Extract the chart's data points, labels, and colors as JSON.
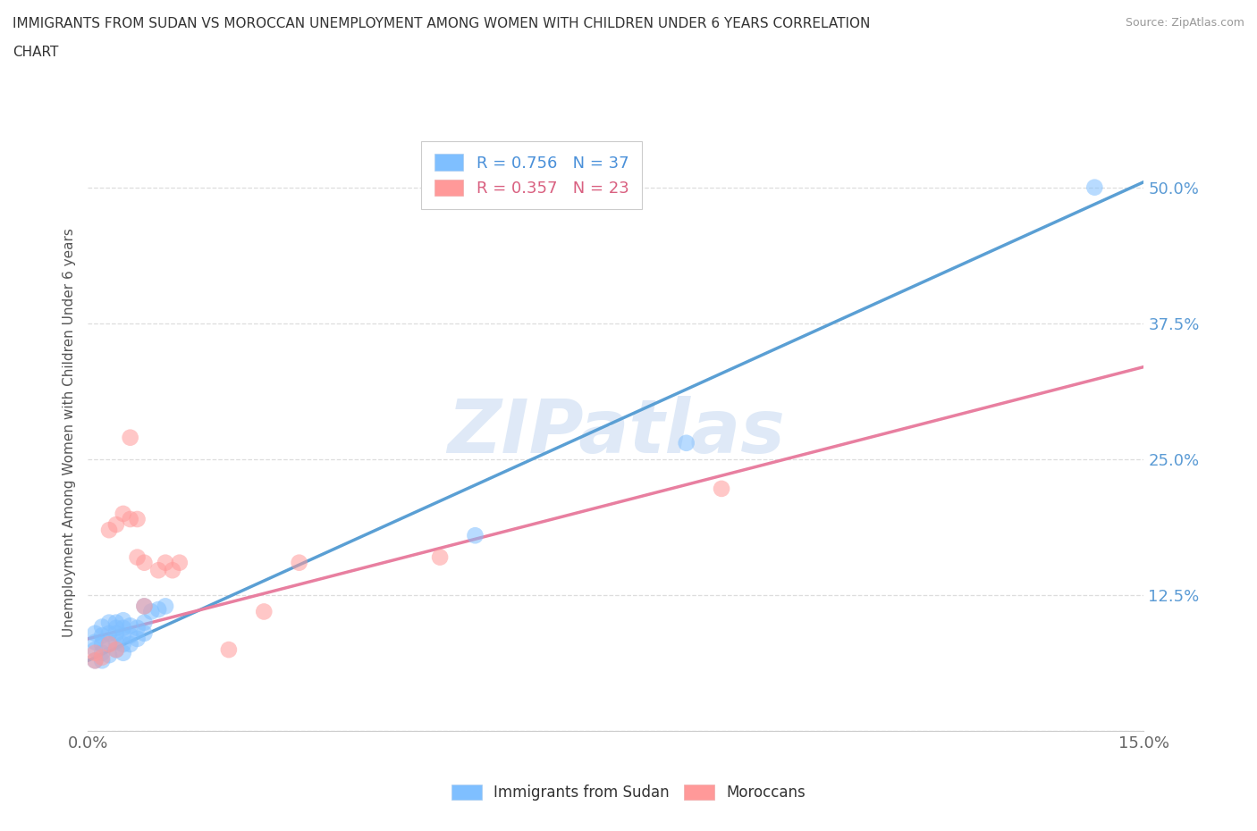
{
  "title_line1": "IMMIGRANTS FROM SUDAN VS MOROCCAN UNEMPLOYMENT AMONG WOMEN WITH CHILDREN UNDER 6 YEARS CORRELATION",
  "title_line2": "CHART",
  "source": "Source: ZipAtlas.com",
  "ylabel": "Unemployment Among Women with Children Under 6 years",
  "xlim": [
    0.0,
    0.15
  ],
  "ylim": [
    0.0,
    0.55
  ],
  "xticks": [
    0.0,
    0.025,
    0.05,
    0.075,
    0.1,
    0.125,
    0.15
  ],
  "xticklabels_show": {
    "0": "0.0%",
    "6": "15.0%"
  },
  "yticks": [
    0.0,
    0.125,
    0.25,
    0.375,
    0.5
  ],
  "yticklabels": [
    "",
    "12.5%",
    "25.0%",
    "37.5%",
    "50.0%"
  ],
  "blue_color": "#7fbfff",
  "pink_color": "#ff9999",
  "blue_line_color": "#5a9fd4",
  "pink_line_color": "#e87fa0",
  "blue_label": "Immigrants from Sudan",
  "pink_label": "Moroccans",
  "legend_r_blue": "R = 0.756",
  "legend_n_blue": "N = 37",
  "legend_r_pink": "R = 0.357",
  "legend_n_pink": "N = 23",
  "legend_text_blue": "R = 0.756   N = 37",
  "legend_text_pink": "R = 0.357   N = 23",
  "watermark": "ZIPatlas",
  "blue_scatter_x": [
    0.001,
    0.001,
    0.001,
    0.001,
    0.002,
    0.002,
    0.002,
    0.002,
    0.002,
    0.003,
    0.003,
    0.003,
    0.003,
    0.004,
    0.004,
    0.004,
    0.004,
    0.004,
    0.005,
    0.005,
    0.005,
    0.005,
    0.005,
    0.006,
    0.006,
    0.006,
    0.007,
    0.007,
    0.008,
    0.008,
    0.008,
    0.009,
    0.01,
    0.011,
    0.055,
    0.085,
    0.143
  ],
  "blue_scatter_y": [
    0.065,
    0.075,
    0.082,
    0.09,
    0.065,
    0.072,
    0.08,
    0.088,
    0.096,
    0.07,
    0.082,
    0.09,
    0.1,
    0.075,
    0.082,
    0.09,
    0.095,
    0.1,
    0.072,
    0.08,
    0.088,
    0.095,
    0.102,
    0.08,
    0.088,
    0.097,
    0.085,
    0.095,
    0.09,
    0.1,
    0.115,
    0.11,
    0.112,
    0.115,
    0.18,
    0.265,
    0.5
  ],
  "pink_scatter_x": [
    0.001,
    0.001,
    0.002,
    0.003,
    0.003,
    0.004,
    0.004,
    0.005,
    0.006,
    0.006,
    0.007,
    0.007,
    0.008,
    0.008,
    0.01,
    0.011,
    0.012,
    0.013,
    0.02,
    0.025,
    0.03,
    0.05,
    0.09
  ],
  "pink_scatter_y": [
    0.065,
    0.072,
    0.068,
    0.08,
    0.185,
    0.075,
    0.19,
    0.2,
    0.195,
    0.27,
    0.16,
    0.195,
    0.115,
    0.155,
    0.148,
    0.155,
    0.148,
    0.155,
    0.075,
    0.11,
    0.155,
    0.16,
    0.223
  ],
  "blue_line_x": [
    0.0,
    0.15
  ],
  "blue_line_y": [
    0.065,
    0.505
  ],
  "pink_line_x": [
    0.0,
    0.15
  ],
  "pink_line_y": [
    0.085,
    0.335
  ],
  "grid_color": "#dddddd",
  "spine_color": "#cccccc",
  "tick_label_color_y": "#5b9bd5",
  "tick_label_color_x": "#666666",
  "title_color": "#333333",
  "ylabel_color": "#555555",
  "scatter_size": 180,
  "scatter_alpha": 0.55
}
